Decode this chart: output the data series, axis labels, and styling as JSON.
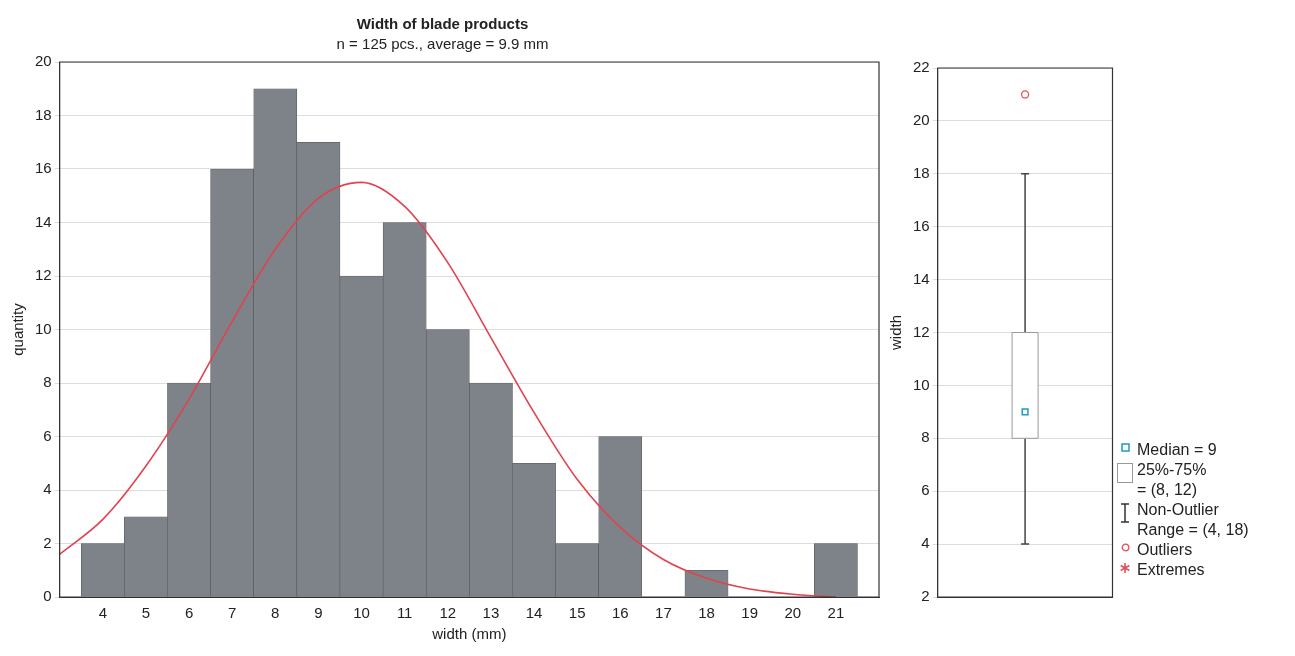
{
  "chart_data": [
    {
      "type": "histogram",
      "title": "Width of blade products",
      "subtitle": "n = 125 pcs., average = 9.9 mm",
      "xlabel": "width (mm)",
      "ylabel": "quantity",
      "bins": [
        3.5,
        4.5,
        5.5,
        6.5,
        7.5,
        8.5,
        9.5,
        10.5,
        11.5,
        12.5,
        13.5,
        14.5,
        15.5,
        16.5,
        17.5,
        18.5,
        19.5,
        20.5,
        21.5
      ],
      "values": [
        2,
        3,
        8,
        16,
        19,
        17,
        12,
        14,
        10,
        8,
        5,
        2,
        6,
        0,
        1,
        0,
        0,
        2
      ],
      "color": "#7d8388",
      "series": [
        {
          "type": "line",
          "color": "#e0434f",
          "x": [
            3,
            4,
            5,
            6,
            7,
            8,
            9,
            10,
            11,
            12,
            13,
            14,
            15,
            16,
            17,
            18,
            19,
            20,
            21
          ],
          "values": [
            1.6,
            2.9,
            4.9,
            7.4,
            10.3,
            13.0,
            14.9,
            15.5,
            14.6,
            12.5,
            9.7,
            6.9,
            4.4,
            2.6,
            1.4,
            0.7,
            0.3,
            0.1,
            0.0
          ]
        }
      ],
      "xlim": [
        3,
        22
      ],
      "xticks": [
        4,
        5,
        6,
        7,
        8,
        9,
        10,
        11,
        12,
        13,
        14,
        15,
        16,
        17,
        18,
        19,
        20,
        21
      ],
      "ylim": [
        0,
        20
      ],
      "yticks": [
        0,
        2,
        4,
        6,
        8,
        10,
        12,
        14,
        16,
        18,
        20
      ],
      "grid": "y"
    },
    {
      "type": "box",
      "ylabel": "width",
      "categories": [
        null
      ],
      "color": "#ffffff",
      "boxes": [
        {
          "low": 4,
          "q1": 8,
          "median": 9,
          "q3": 12,
          "high": 18,
          "outliers": [
            21
          ]
        }
      ],
      "ylim": [
        2,
        22
      ],
      "yticks": [
        2,
        4,
        6,
        8,
        10,
        12,
        14,
        16,
        18,
        20,
        22
      ],
      "grid": "y",
      "tick_labels": "y",
      "annotations": [
        "Median = 9",
        "25%-75%\n= (8, 12)",
        "Non-Outlier\nRange = (4, 18)",
        "Outliers",
        "Extremes"
      ]
    }
  ]
}
